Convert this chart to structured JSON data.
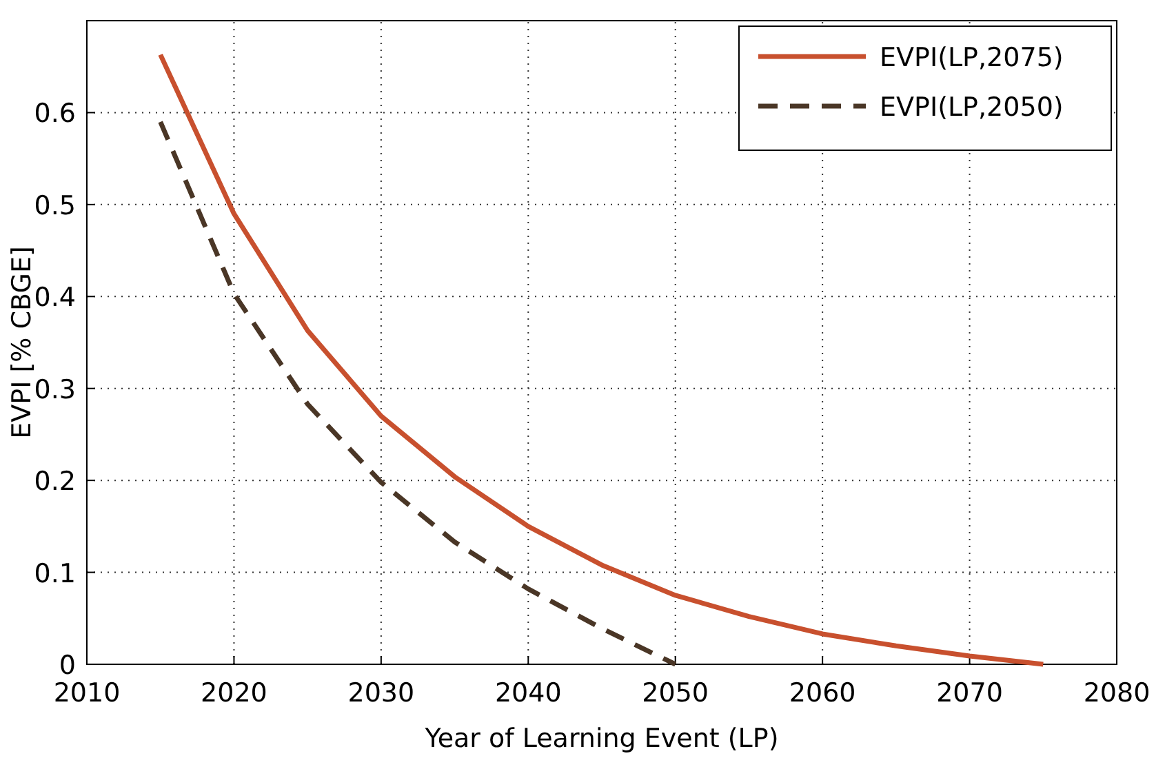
{
  "chart_data": {
    "type": "line",
    "xlabel": "Year of Learning Event (LP)",
    "ylabel": "EVPI [% CBGE]",
    "xlim": [
      2010,
      2080
    ],
    "xticks": [
      2010,
      2020,
      2030,
      2040,
      2050,
      2060,
      2070,
      2080
    ],
    "ylim": [
      0,
      0.7
    ],
    "yticks": [
      0,
      0.1,
      0.2,
      0.3,
      0.4,
      0.5,
      0.6
    ],
    "grid": true,
    "legend": "top right",
    "series": [
      {
        "name": "EVPI(LP,2075)",
        "color": "#c8502e",
        "line_style": "solid",
        "x": [
          2015,
          2020,
          2025,
          2030,
          2035,
          2040,
          2045,
          2050,
          2055,
          2060,
          2065,
          2070,
          2075
        ],
        "values": [
          0.663,
          0.49,
          0.363,
          0.27,
          0.204,
          0.15,
          0.108,
          0.075,
          0.052,
          0.033,
          0.02,
          0.009,
          0
        ]
      },
      {
        "name": "EVPI(LP,2050)",
        "color": "#4a3626",
        "line_style": "dashed",
        "x": [
          2015,
          2020,
          2025,
          2030,
          2035,
          2040,
          2045,
          2050
        ],
        "values": [
          0.59,
          0.403,
          0.283,
          0.198,
          0.133,
          0.082,
          0.039,
          0
        ]
      }
    ]
  }
}
